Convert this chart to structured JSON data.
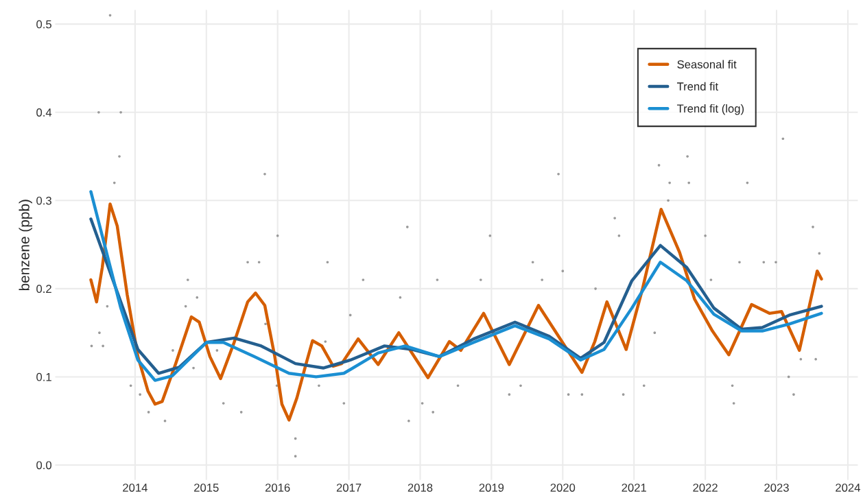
{
  "chart_data": {
    "type": "line",
    "ylabel": "benzene (ppb)",
    "xlim": [
      2012.88,
      2024.14
    ],
    "ylim": [
      -0.017,
      0.516
    ],
    "xticks": [
      2014,
      2015,
      2016,
      2017,
      2018,
      2019,
      2020,
      2021,
      2022,
      2023,
      2024
    ],
    "yticks": [
      {
        "value": 0,
        "label": "0.0"
      },
      0.1,
      0.2,
      0.3,
      0.4,
      0.5
    ],
    "grid": true,
    "legend": "top right",
    "line_style": "solid",
    "series": [
      {
        "type": "scatter",
        "color": "#9a9a9a",
        "marker": "circle",
        "x": [
          2013.65,
          2013.49,
          2013.8,
          2013.78,
          2013.71,
          2013.5,
          2013.55,
          2013.39,
          2013.61,
          2013.94,
          2014.07,
          2014.19,
          2014.42,
          2014.53,
          2014.74,
          2014.71,
          2014.87,
          2014.82,
          2015.15,
          2015.24,
          2015.49,
          2015.58,
          2015.74,
          2015.83,
          2015.82,
          2015.99,
          2016.0,
          2016.25,
          2016.25,
          2016.58,
          2016.67,
          2016.7,
          2016.93,
          2017.02,
          2017.2,
          2017.72,
          2017.82,
          2017.84,
          2018.03,
          2018.18,
          2018.24,
          2018.53,
          2018.85,
          2018.98,
          2019.25,
          2019.41,
          2019.58,
          2019.71,
          2019.94,
          2020.0,
          2020.08,
          2020.27,
          2020.46,
          2020.73,
          2020.79,
          2020.85,
          2021.14,
          2021.29,
          2021.35,
          2021.48,
          2021.5,
          2021.75,
          2021.77,
          2022.0,
          2022.08,
          2022.38,
          2022.4,
          2022.48,
          2022.59,
          2022.82,
          2022.99,
          2023.09,
          2023.17,
          2023.24,
          2023.34,
          2023.51,
          2023.55,
          2023.6
        ],
        "values": [
          0.51,
          0.4,
          0.4,
          0.35,
          0.32,
          0.15,
          0.135,
          0.135,
          0.18,
          0.09,
          0.08,
          0.06,
          0.05,
          0.13,
          0.21,
          0.18,
          0.19,
          0.11,
          0.13,
          0.07,
          0.06,
          0.23,
          0.23,
          0.16,
          0.33,
          0.09,
          0.26,
          0.01,
          0.03,
          0.09,
          0.14,
          0.23,
          0.07,
          0.17,
          0.21,
          0.19,
          0.27,
          0.05,
          0.07,
          0.06,
          0.21,
          0.09,
          0.21,
          0.26,
          0.08,
          0.09,
          0.23,
          0.21,
          0.33,
          0.22,
          0.08,
          0.08,
          0.2,
          0.28,
          0.26,
          0.08,
          0.09,
          0.15,
          0.34,
          0.3,
          0.32,
          0.35,
          0.32,
          0.26,
          0.21,
          0.09,
          0.07,
          0.23,
          0.32,
          0.23,
          0.23,
          0.37,
          0.1,
          0.08,
          0.12,
          0.27,
          0.12,
          0.24
        ]
      },
      {
        "name": "Seasonal fit",
        "color": "#d55e00",
        "x": [
          2013.38,
          2013.46,
          2013.54,
          2013.65,
          2013.75,
          2013.89,
          2014.04,
          2014.18,
          2014.28,
          2014.38,
          2014.57,
          2014.79,
          2014.9,
          2015.05,
          2015.2,
          2015.39,
          2015.58,
          2015.69,
          2015.82,
          2015.96,
          2016.06,
          2016.16,
          2016.27,
          2016.4,
          2016.49,
          2016.62,
          2016.78,
          2016.9,
          2017.13,
          2017.41,
          2017.7,
          2018.11,
          2018.41,
          2018.57,
          2018.89,
          2019.25,
          2019.66,
          2020.27,
          2020.45,
          2020.62,
          2020.89,
          2021.12,
          2021.38,
          2021.64,
          2021.85,
          2022.1,
          2022.33,
          2022.65,
          2022.9,
          2023.07,
          2023.32,
          2023.57,
          2023.63
        ],
        "values": [
          0.21,
          0.185,
          0.224,
          0.296,
          0.271,
          0.193,
          0.123,
          0.084,
          0.069,
          0.072,
          0.115,
          0.168,
          0.162,
          0.123,
          0.098,
          0.139,
          0.185,
          0.195,
          0.181,
          0.123,
          0.069,
          0.051,
          0.076,
          0.115,
          0.141,
          0.135,
          0.112,
          0.115,
          0.143,
          0.114,
          0.15,
          0.099,
          0.14,
          0.13,
          0.172,
          0.114,
          0.181,
          0.105,
          0.14,
          0.185,
          0.131,
          0.2,
          0.29,
          0.241,
          0.188,
          0.152,
          0.125,
          0.182,
          0.172,
          0.174,
          0.13,
          0.22,
          0.211
        ]
      },
      {
        "name": "Trend fit",
        "color": "#245f8f",
        "x": [
          2013.38,
          2013.8,
          2014.04,
          2014.33,
          2014.62,
          2015.0,
          2015.39,
          2015.77,
          2016.25,
          2016.64,
          2017.02,
          2017.5,
          2017.89,
          2018.27,
          2018.75,
          2019.33,
          2019.81,
          2020.25,
          2020.58,
          2020.97,
          2021.37,
          2021.74,
          2022.12,
          2022.51,
          2022.8,
          2023.18,
          2023.63
        ],
        "values": [
          0.279,
          0.185,
          0.131,
          0.104,
          0.111,
          0.139,
          0.144,
          0.135,
          0.115,
          0.11,
          0.119,
          0.135,
          0.131,
          0.123,
          0.143,
          0.162,
          0.146,
          0.121,
          0.139,
          0.209,
          0.249,
          0.224,
          0.178,
          0.154,
          0.156,
          0.17,
          0.18
        ]
      },
      {
        "name": "Trend fit (log)",
        "color": "#1b8fd2",
        "x": [
          2013.38,
          2013.8,
          2014.04,
          2014.28,
          2014.52,
          2015.0,
          2015.24,
          2015.67,
          2016.16,
          2016.54,
          2016.93,
          2017.41,
          2017.79,
          2018.27,
          2018.75,
          2019.33,
          2019.81,
          2020.25,
          2020.58,
          2020.97,
          2021.37,
          2021.74,
          2022.12,
          2022.51,
          2022.8,
          2023.18,
          2023.63
        ],
        "values": [
          0.31,
          0.178,
          0.119,
          0.096,
          0.101,
          0.139,
          0.139,
          0.123,
          0.104,
          0.1,
          0.104,
          0.127,
          0.135,
          0.123,
          0.139,
          0.158,
          0.143,
          0.119,
          0.131,
          0.178,
          0.23,
          0.209,
          0.171,
          0.152,
          0.152,
          0.16,
          0.172
        ]
      }
    ]
  }
}
